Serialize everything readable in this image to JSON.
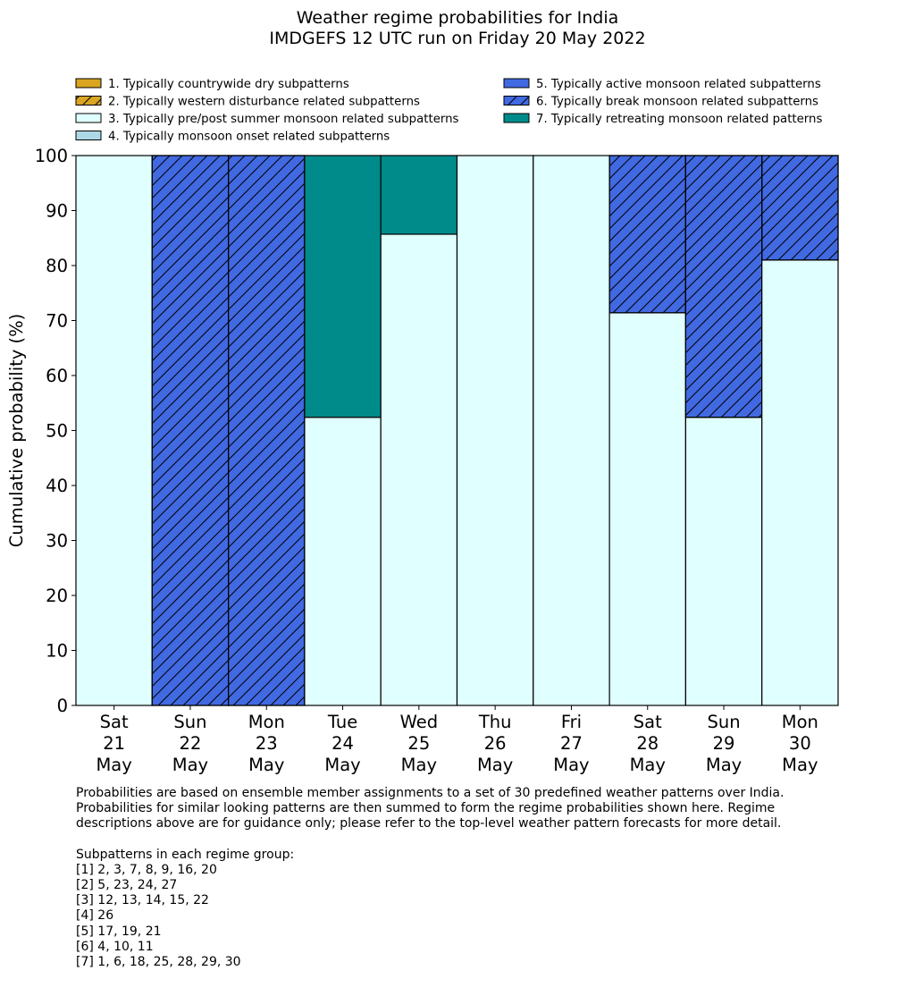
{
  "chart_data": {
    "type": "bar",
    "stacked": true,
    "title": [
      "Weather regime probabilities for India",
      "IMDGEFS 12 UTC run on Friday 20 May 2022"
    ],
    "ylabel": "Cumulative probability (%)",
    "xlabel": "",
    "ylim": [
      0,
      100
    ],
    "yticks": [
      0,
      10,
      20,
      30,
      40,
      50,
      60,
      70,
      80,
      90,
      100
    ],
    "grid": false,
    "legend_placement": "top, two columns",
    "categories": [
      [
        "Sat",
        "21",
        "May"
      ],
      [
        "Sun",
        "22",
        "May"
      ],
      [
        "Mon",
        "23",
        "May"
      ],
      [
        "Tue",
        "24",
        "May"
      ],
      [
        "Wed",
        "25",
        "May"
      ],
      [
        "Thu",
        "26",
        "May"
      ],
      [
        "Fri",
        "27",
        "May"
      ],
      [
        "Sat",
        "28",
        "May"
      ],
      [
        "Sun",
        "29",
        "May"
      ],
      [
        "Mon",
        "30",
        "May"
      ]
    ],
    "series": [
      {
        "name": "1. Typically countrywide dry subpatterns",
        "color": "#DAA520",
        "hatch": false,
        "values": [
          0,
          0,
          0,
          0,
          0,
          0,
          0,
          0,
          0,
          0
        ]
      },
      {
        "name": "2. Typically western disturbance related subpatterns",
        "color": "#DAA520",
        "hatch": true,
        "values": [
          0,
          0,
          0,
          0,
          0,
          0,
          0,
          0,
          0,
          0
        ]
      },
      {
        "name": "3. Typically pre/post summer monsoon related subpatterns",
        "color": "#E0FFFF",
        "hatch": false,
        "values": [
          100,
          0,
          0,
          52.4,
          85.7,
          100,
          100,
          71.4,
          52.4,
          81
        ]
      },
      {
        "name": "4. Typically monsoon onset related subpatterns",
        "color": "#ADD8E6",
        "hatch": false,
        "values": [
          0,
          0,
          0,
          0,
          0,
          0,
          0,
          0,
          0,
          0
        ]
      },
      {
        "name": "5. Typically active monsoon related subpatterns",
        "color": "#4169E1",
        "hatch": false,
        "values": [
          0,
          0,
          0,
          0,
          0,
          0,
          0,
          0,
          0,
          0
        ]
      },
      {
        "name": "6. Typically break monsoon related subpatterns",
        "color": "#4169E1",
        "hatch": true,
        "values": [
          0,
          100,
          100,
          0,
          0,
          0,
          0,
          28.6,
          47.6,
          19
        ]
      },
      {
        "name": "7. Typically retreating monsoon related patterns",
        "color": "#008B8B",
        "hatch": false,
        "values": [
          0,
          0,
          0,
          47.6,
          14.3,
          0,
          0,
          0,
          0,
          0
        ]
      }
    ]
  },
  "notes": {
    "paragraph": [
      "Probabilities are based on ensemble member assignments to a set of 30 predefined weather patterns over India.",
      "Probabilities for similar looking patterns are then summed to form the regime probabilities shown here. Regime",
      "descriptions above are for guidance only; please refer to the top-level weather pattern forecasts for more detail."
    ],
    "groups_heading": "Subpatterns in each regime group:",
    "groups": [
      "[1] 2, 3, 7, 8, 9, 16, 20",
      "[2] 5, 23, 24, 27",
      "[3] 12, 13, 14, 15, 22",
      "[4] 26",
      "[5] 17, 19, 21",
      "[6] 4, 10, 11",
      "[7] 1, 6, 18, 25, 28, 29, 30"
    ]
  }
}
